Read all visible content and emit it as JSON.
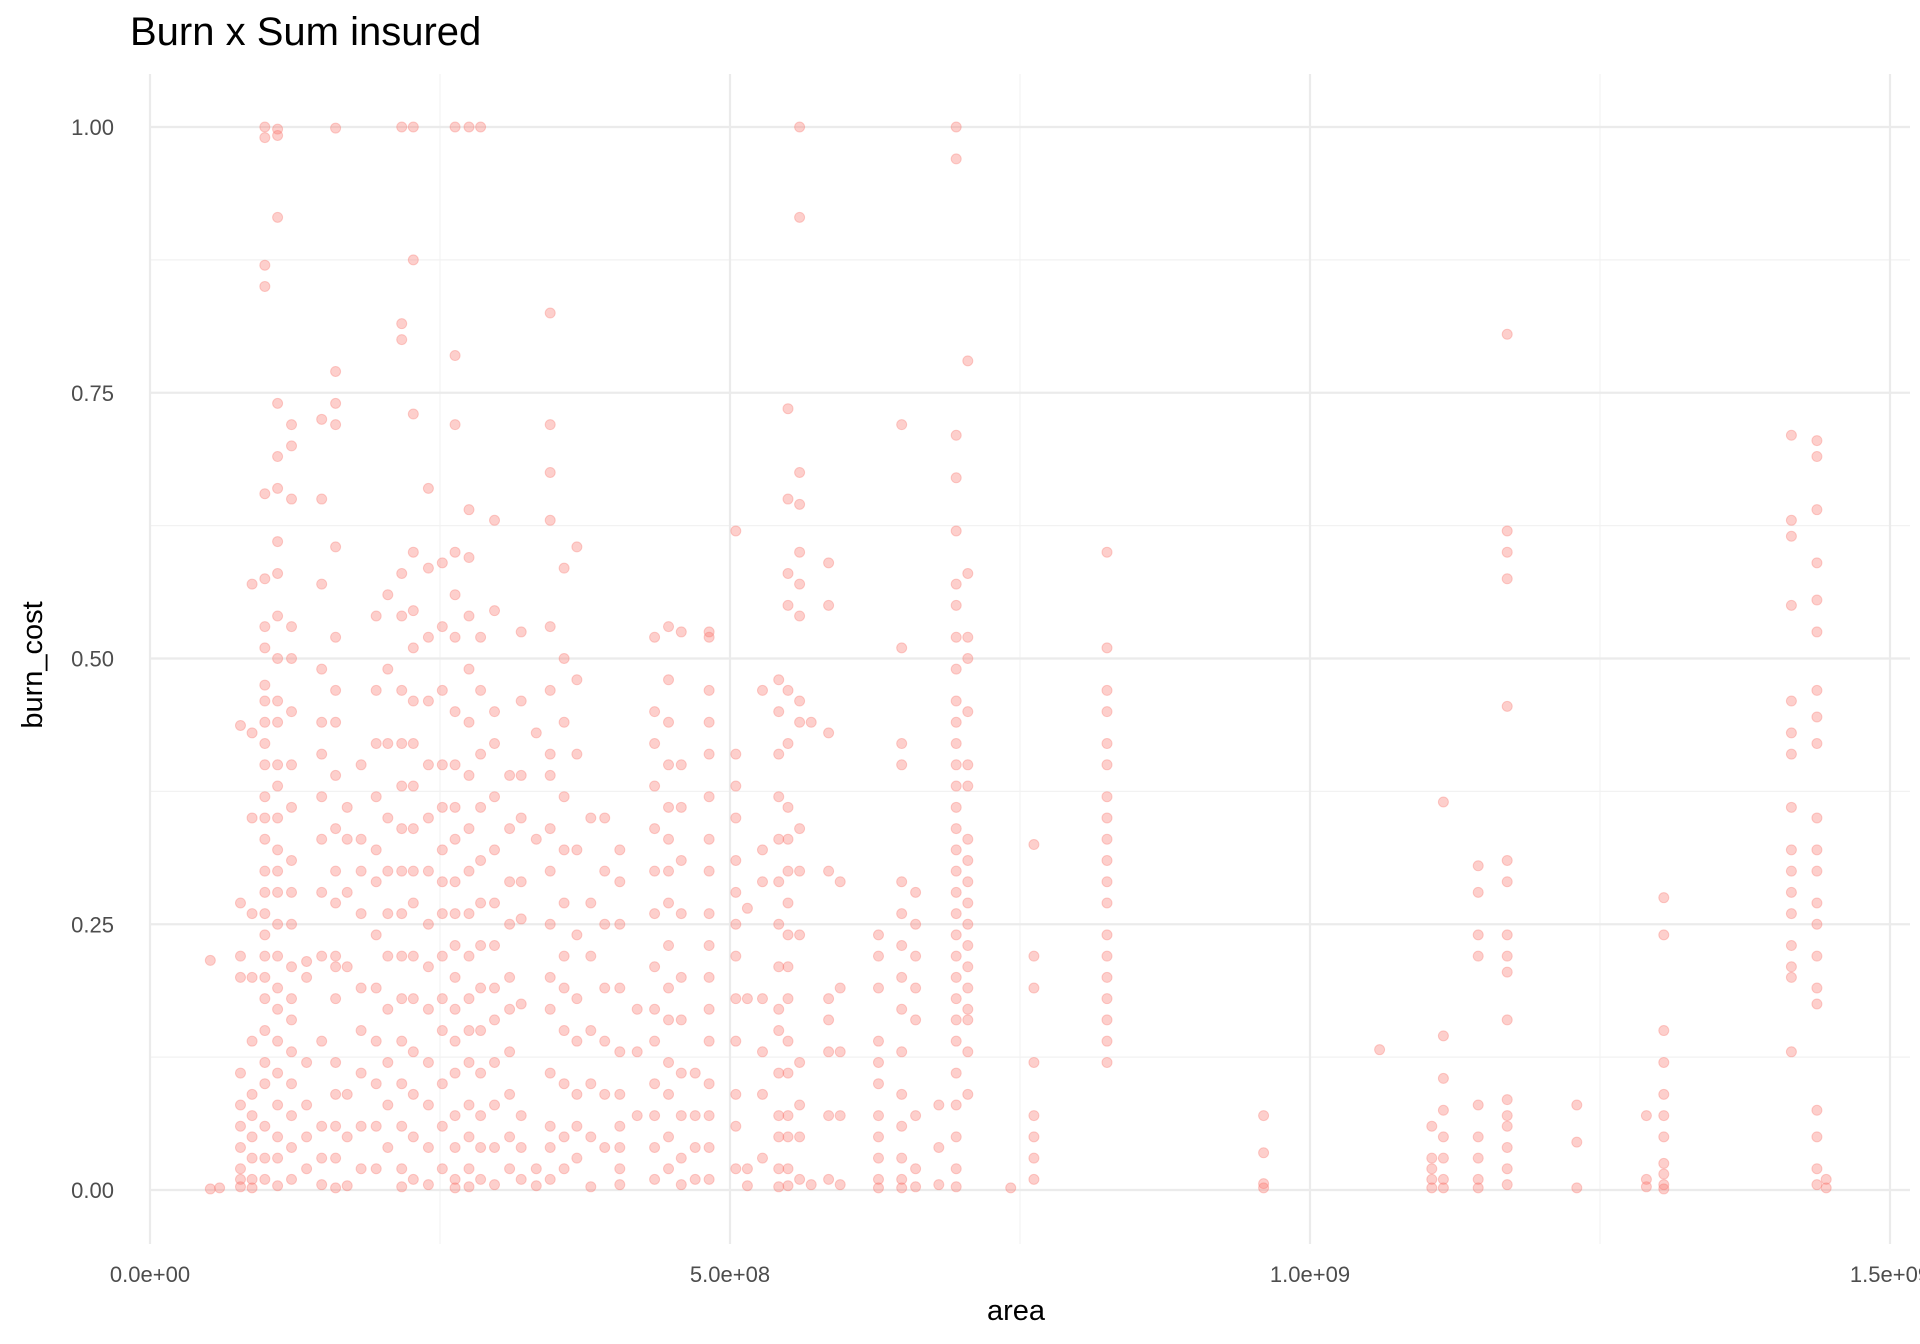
{
  "chart_data": {
    "type": "scatter",
    "title": "Burn x Sum insured",
    "xlabel": "area",
    "ylabel": "burn_cost",
    "xlim": [
      -5000000.0,
      1500000000.0
    ],
    "ylim": [
      -0.05,
      1.05
    ],
    "x_ticks": [
      0,
      500000000,
      1000000000,
      1500000000
    ],
    "x_tick_labels": [
      "0.0e+00",
      "5.0e+08",
      "1.0e+09",
      "1.5e+09"
    ],
    "y_ticks": [
      0,
      0.25,
      0.5,
      0.75,
      1.0
    ],
    "y_tick_labels": [
      "0.00",
      "0.25",
      "0.50",
      "0.75",
      "1.00"
    ],
    "grid": true,
    "point_color": "#F8766D",
    "point_alpha": 0.35,
    "columns": [
      {
        "x": 52000000.0,
        "y": [
          0.216,
          0.001
        ]
      },
      {
        "x": 60000000.0,
        "y": [
          0.002
        ]
      },
      {
        "x": 78000000.0,
        "y": [
          0.437,
          0.27,
          0.22,
          0.2,
          0.11,
          0.08,
          0.06,
          0.04,
          0.02,
          0.01,
          0.003
        ]
      },
      {
        "x": 88000000.0,
        "y": [
          0.57,
          0.43,
          0.35,
          0.26,
          0.2,
          0.14,
          0.09,
          0.07,
          0.05,
          0.03,
          0.01,
          0.002
        ]
      },
      {
        "x": 99000000.0,
        "y": [
          1.0,
          0.99,
          0.87,
          0.85,
          0.655,
          0.575,
          0.53,
          0.51,
          0.475,
          0.46,
          0.44,
          0.42,
          0.4,
          0.37,
          0.35,
          0.33,
          0.3,
          0.28,
          0.26,
          0.24,
          0.22,
          0.2,
          0.18,
          0.15,
          0.12,
          0.1,
          0.06,
          0.03,
          0.01
        ]
      },
      {
        "x": 110000000.0,
        "y": [
          0.998,
          0.992,
          0.915,
          0.74,
          0.69,
          0.66,
          0.61,
          0.58,
          0.54,
          0.5,
          0.46,
          0.44,
          0.4,
          0.38,
          0.35,
          0.32,
          0.3,
          0.28,
          0.25,
          0.22,
          0.19,
          0.17,
          0.14,
          0.11,
          0.08,
          0.05,
          0.03,
          0.004
        ]
      },
      {
        "x": 122000000.0,
        "y": [
          0.72,
          0.7,
          0.65,
          0.53,
          0.5,
          0.45,
          0.4,
          0.36,
          0.31,
          0.28,
          0.25,
          0.21,
          0.18,
          0.16,
          0.13,
          0.1,
          0.07,
          0.04,
          0.01
        ]
      },
      {
        "x": 135000000.0,
        "y": [
          0.215,
          0.2,
          0.12,
          0.08,
          0.05,
          0.02
        ]
      },
      {
        "x": 148000000.0,
        "y": [
          0.725,
          0.65,
          0.57,
          0.49,
          0.44,
          0.41,
          0.37,
          0.33,
          0.28,
          0.22,
          0.14,
          0.06,
          0.03,
          0.005
        ]
      },
      {
        "x": 160000000.0,
        "y": [
          0.999,
          0.77,
          0.74,
          0.72,
          0.605,
          0.52,
          0.47,
          0.44,
          0.39,
          0.34,
          0.3,
          0.27,
          0.22,
          0.21,
          0.18,
          0.12,
          0.09,
          0.06,
          0.03,
          0.002
        ]
      },
      {
        "x": 170000000.0,
        "y": [
          0.36,
          0.33,
          0.28,
          0.21,
          0.09,
          0.05,
          0.004
        ]
      },
      {
        "x": 182000000.0,
        "y": [
          0.4,
          0.33,
          0.3,
          0.26,
          0.19,
          0.15,
          0.11,
          0.06,
          0.02
        ]
      },
      {
        "x": 195000000.0,
        "y": [
          0.54,
          0.47,
          0.42,
          0.37,
          0.32,
          0.29,
          0.24,
          0.19,
          0.14,
          0.1,
          0.06,
          0.02
        ]
      },
      {
        "x": 205000000.0,
        "y": [
          0.56,
          0.49,
          0.42,
          0.35,
          0.3,
          0.26,
          0.22,
          0.17,
          0.12,
          0.08,
          0.04
        ]
      },
      {
        "x": 217000000.0,
        "y": [
          1.0,
          0.815,
          0.8,
          0.58,
          0.54,
          0.47,
          0.42,
          0.38,
          0.34,
          0.3,
          0.26,
          0.22,
          0.18,
          0.14,
          0.1,
          0.06,
          0.02,
          0.003
        ]
      },
      {
        "x": 227000000.0,
        "y": [
          1.0,
          0.875,
          0.73,
          0.6,
          0.545,
          0.51,
          0.46,
          0.42,
          0.38,
          0.34,
          0.3,
          0.27,
          0.22,
          0.18,
          0.13,
          0.09,
          0.05,
          0.01
        ]
      },
      {
        "x": 240000000.0,
        "y": [
          0.66,
          0.585,
          0.52,
          0.46,
          0.4,
          0.35,
          0.3,
          0.25,
          0.21,
          0.17,
          0.12,
          0.08,
          0.04,
          0.005
        ]
      },
      {
        "x": 252000000.0,
        "y": [
          0.59,
          0.53,
          0.47,
          0.4,
          0.36,
          0.32,
          0.29,
          0.26,
          0.22,
          0.18,
          0.15,
          0.1,
          0.06,
          0.02
        ]
      },
      {
        "x": 263000000.0,
        "y": [
          1.0,
          0.785,
          0.72,
          0.6,
          0.56,
          0.52,
          0.45,
          0.4,
          0.36,
          0.33,
          0.29,
          0.26,
          0.23,
          0.2,
          0.17,
          0.14,
          0.11,
          0.07,
          0.04,
          0.01,
          0.002
        ]
      },
      {
        "x": 275000000.0,
        "y": [
          1.0,
          0.64,
          0.595,
          0.54,
          0.49,
          0.44,
          0.39,
          0.34,
          0.3,
          0.26,
          0.22,
          0.18,
          0.15,
          0.12,
          0.08,
          0.05,
          0.02,
          0.003
        ]
      },
      {
        "x": 285000000.0,
        "y": [
          1.0,
          0.52,
          0.47,
          0.41,
          0.36,
          0.31,
          0.27,
          0.23,
          0.19,
          0.15,
          0.11,
          0.07,
          0.04,
          0.01
        ]
      },
      {
        "x": 297000000.0,
        "y": [
          0.63,
          0.545,
          0.45,
          0.42,
          0.37,
          0.32,
          0.27,
          0.23,
          0.19,
          0.16,
          0.12,
          0.08,
          0.04,
          0.005
        ]
      },
      {
        "x": 310000000.0,
        "y": [
          0.39,
          0.34,
          0.29,
          0.25,
          0.2,
          0.17,
          0.13,
          0.09,
          0.05,
          0.02
        ]
      },
      {
        "x": 320000000.0,
        "y": [
          0.525,
          0.46,
          0.39,
          0.35,
          0.29,
          0.255,
          0.175,
          0.07,
          0.04,
          0.01
        ]
      },
      {
        "x": 333000000.0,
        "y": [
          0.43,
          0.33,
          0.02,
          0.004
        ]
      },
      {
        "x": 345000000.0,
        "y": [
          0.825,
          0.72,
          0.675,
          0.63,
          0.53,
          0.47,
          0.41,
          0.39,
          0.34,
          0.3,
          0.25,
          0.2,
          0.17,
          0.11,
          0.06,
          0.04,
          0.01
        ]
      },
      {
        "x": 357000000.0,
        "y": [
          0.585,
          0.5,
          0.44,
          0.37,
          0.32,
          0.27,
          0.22,
          0.19,
          0.15,
          0.1,
          0.05,
          0.02
        ]
      },
      {
        "x": 368000000.0,
        "y": [
          0.605,
          0.48,
          0.41,
          0.32,
          0.24,
          0.18,
          0.14,
          0.09,
          0.06,
          0.03
        ]
      },
      {
        "x": 380000000.0,
        "y": [
          0.35,
          0.27,
          0.22,
          0.15,
          0.1,
          0.05,
          0.003
        ]
      },
      {
        "x": 392000000.0,
        "y": [
          0.35,
          0.3,
          0.25,
          0.19,
          0.14,
          0.09,
          0.04
        ]
      },
      {
        "x": 405000000.0,
        "y": [
          0.32,
          0.29,
          0.25,
          0.19,
          0.13,
          0.09,
          0.06,
          0.04,
          0.02,
          0.005
        ]
      },
      {
        "x": 420000000.0,
        "y": [
          0.17,
          0.13,
          0.07
        ]
      },
      {
        "x": 435000000.0,
        "y": [
          0.52,
          0.45,
          0.42,
          0.38,
          0.34,
          0.3,
          0.26,
          0.21,
          0.17,
          0.14,
          0.1,
          0.07,
          0.04,
          0.01
        ]
      },
      {
        "x": 447000000.0,
        "y": [
          0.53,
          0.48,
          0.44,
          0.4,
          0.36,
          0.33,
          0.3,
          0.27,
          0.23,
          0.19,
          0.16,
          0.12,
          0.09,
          0.05,
          0.02
        ]
      },
      {
        "x": 458000000.0,
        "y": [
          0.525,
          0.4,
          0.36,
          0.31,
          0.26,
          0.2,
          0.16,
          0.11,
          0.07,
          0.03,
          0.005
        ]
      },
      {
        "x": 470000000.0,
        "y": [
          0.11,
          0.07,
          0.04,
          0.01
        ]
      },
      {
        "x": 482000000.0,
        "y": [
          0.525,
          0.52,
          0.47,
          0.44,
          0.41,
          0.37,
          0.33,
          0.3,
          0.26,
          0.23,
          0.2,
          0.17,
          0.14,
          0.1,
          0.07,
          0.04,
          0.01
        ]
      },
      {
        "x": 505000000.0,
        "y": [
          0.62,
          0.41,
          0.38,
          0.35,
          0.31,
          0.28,
          0.25,
          0.22,
          0.18,
          0.14,
          0.09,
          0.06,
          0.02
        ]
      },
      {
        "x": 515000000.0,
        "y": [
          0.265,
          0.18,
          0.02,
          0.004
        ]
      },
      {
        "x": 528000000.0,
        "y": [
          0.47,
          0.32,
          0.29,
          0.18,
          0.13,
          0.09,
          0.03
        ]
      },
      {
        "x": 542000000.0,
        "y": [
          0.48,
          0.45,
          0.41,
          0.37,
          0.33,
          0.29,
          0.25,
          0.21,
          0.17,
          0.15,
          0.11,
          0.07,
          0.05,
          0.02,
          0.003
        ]
      },
      {
        "x": 550000000.0,
        "y": [
          0.735,
          0.65,
          0.58,
          0.55,
          0.47,
          0.42,
          0.36,
          0.33,
          0.3,
          0.27,
          0.24,
          0.21,
          0.18,
          0.14,
          0.11,
          0.07,
          0.05,
          0.02,
          0.004
        ]
      },
      {
        "x": 560000000.0,
        "y": [
          1.0,
          0.915,
          0.675,
          0.645,
          0.6,
          0.57,
          0.54,
          0.46,
          0.44,
          0.34,
          0.3,
          0.24,
          0.12,
          0.08,
          0.05,
          0.01
        ]
      },
      {
        "x": 570000000.0,
        "y": [
          0.44,
          0.005
        ]
      },
      {
        "x": 585000000.0,
        "y": [
          0.59,
          0.55,
          0.43,
          0.3,
          0.18,
          0.16,
          0.13,
          0.07,
          0.01
        ]
      },
      {
        "x": 595000000.0,
        "y": [
          0.29,
          0.19,
          0.13,
          0.07,
          0.005
        ]
      },
      {
        "x": 628000000.0,
        "y": [
          0.24,
          0.22,
          0.19,
          0.14,
          0.12,
          0.1,
          0.07,
          0.05,
          0.03,
          0.01,
          0.002
        ]
      },
      {
        "x": 648000000.0,
        "y": [
          0.72,
          0.51,
          0.42,
          0.4,
          0.29,
          0.26,
          0.23,
          0.2,
          0.17,
          0.13,
          0.09,
          0.06,
          0.03,
          0.01,
          0.002
        ]
      },
      {
        "x": 660000000.0,
        "y": [
          0.28,
          0.25,
          0.22,
          0.19,
          0.16,
          0.07,
          0.02,
          0.003
        ]
      },
      {
        "x": 680000000.0,
        "y": [
          0.08,
          0.04,
          0.005
        ]
      },
      {
        "x": 695000000.0,
        "y": [
          1.0,
          0.97,
          0.71,
          0.67,
          0.62,
          0.57,
          0.55,
          0.52,
          0.49,
          0.46,
          0.44,
          0.42,
          0.4,
          0.38,
          0.36,
          0.34,
          0.32,
          0.3,
          0.28,
          0.26,
          0.24,
          0.22,
          0.2,
          0.18,
          0.16,
          0.14,
          0.11,
          0.08,
          0.05,
          0.02,
          0.003
        ]
      },
      {
        "x": 705000000.0,
        "y": [
          0.78,
          0.58,
          0.52,
          0.5,
          0.45,
          0.4,
          0.38,
          0.33,
          0.31,
          0.29,
          0.27,
          0.25,
          0.23,
          0.21,
          0.19,
          0.17,
          0.16,
          0.13,
          0.09
        ]
      },
      {
        "x": 742000000.0,
        "y": [
          0.002
        ]
      },
      {
        "x": 762000000.0,
        "y": [
          0.325,
          0.22,
          0.19,
          0.12,
          0.07,
          0.05,
          0.03,
          0.01
        ]
      },
      {
        "x": 825000000.0,
        "y": [
          0.6,
          0.51,
          0.47,
          0.45,
          0.42,
          0.4,
          0.37,
          0.35,
          0.33,
          0.31,
          0.29,
          0.27,
          0.24,
          0.22,
          0.2,
          0.18,
          0.16,
          0.14,
          0.12
        ]
      },
      {
        "x": 960000000.0,
        "y": [
          0.07,
          0.035,
          0.006,
          0.002
        ]
      },
      {
        "x": 1060000000.0,
        "y": [
          0.132
        ]
      },
      {
        "x": 1105000000.0,
        "y": [
          0.06,
          0.03,
          0.02,
          0.01,
          0.002
        ]
      },
      {
        "x": 1115000000.0,
        "y": [
          0.365,
          0.145,
          0.105,
          0.075,
          0.05,
          0.03,
          0.01,
          0.002
        ]
      },
      {
        "x": 1145000000.0,
        "y": [
          0.305,
          0.28,
          0.24,
          0.22,
          0.08,
          0.05,
          0.03,
          0.01,
          0.002
        ]
      },
      {
        "x": 1170000000.0,
        "y": [
          0.805,
          0.62,
          0.6,
          0.575,
          0.455,
          0.31,
          0.29,
          0.24,
          0.22,
          0.205,
          0.16,
          0.085,
          0.07,
          0.06,
          0.04,
          0.02,
          0.005
        ]
      },
      {
        "x": 1230000000.0,
        "y": [
          0.08,
          0.045,
          0.002
        ]
      },
      {
        "x": 1290000000.0,
        "y": [
          0.07,
          0.01,
          0.003
        ]
      },
      {
        "x": 1305000000.0,
        "y": [
          0.275,
          0.24,
          0.15,
          0.12,
          0.09,
          0.07,
          0.05,
          0.025,
          0.015,
          0.005,
          0.001
        ]
      },
      {
        "x": 1415000000.0,
        "y": [
          0.71,
          0.63,
          0.615,
          0.55,
          0.46,
          0.43,
          0.41,
          0.36,
          0.32,
          0.3,
          0.28,
          0.26,
          0.23,
          0.21,
          0.2,
          0.13
        ]
      },
      {
        "x": 1437000000.0,
        "y": [
          0.705,
          0.69,
          0.64,
          0.59,
          0.555,
          0.525,
          0.47,
          0.445,
          0.42,
          0.35,
          0.32,
          0.3,
          0.27,
          0.25,
          0.22,
          0.19,
          0.175,
          0.075,
          0.05,
          0.02,
          0.005
        ]
      },
      {
        "x": 1445000000.0,
        "y": [
          0.01,
          0.002
        ]
      }
    ]
  }
}
